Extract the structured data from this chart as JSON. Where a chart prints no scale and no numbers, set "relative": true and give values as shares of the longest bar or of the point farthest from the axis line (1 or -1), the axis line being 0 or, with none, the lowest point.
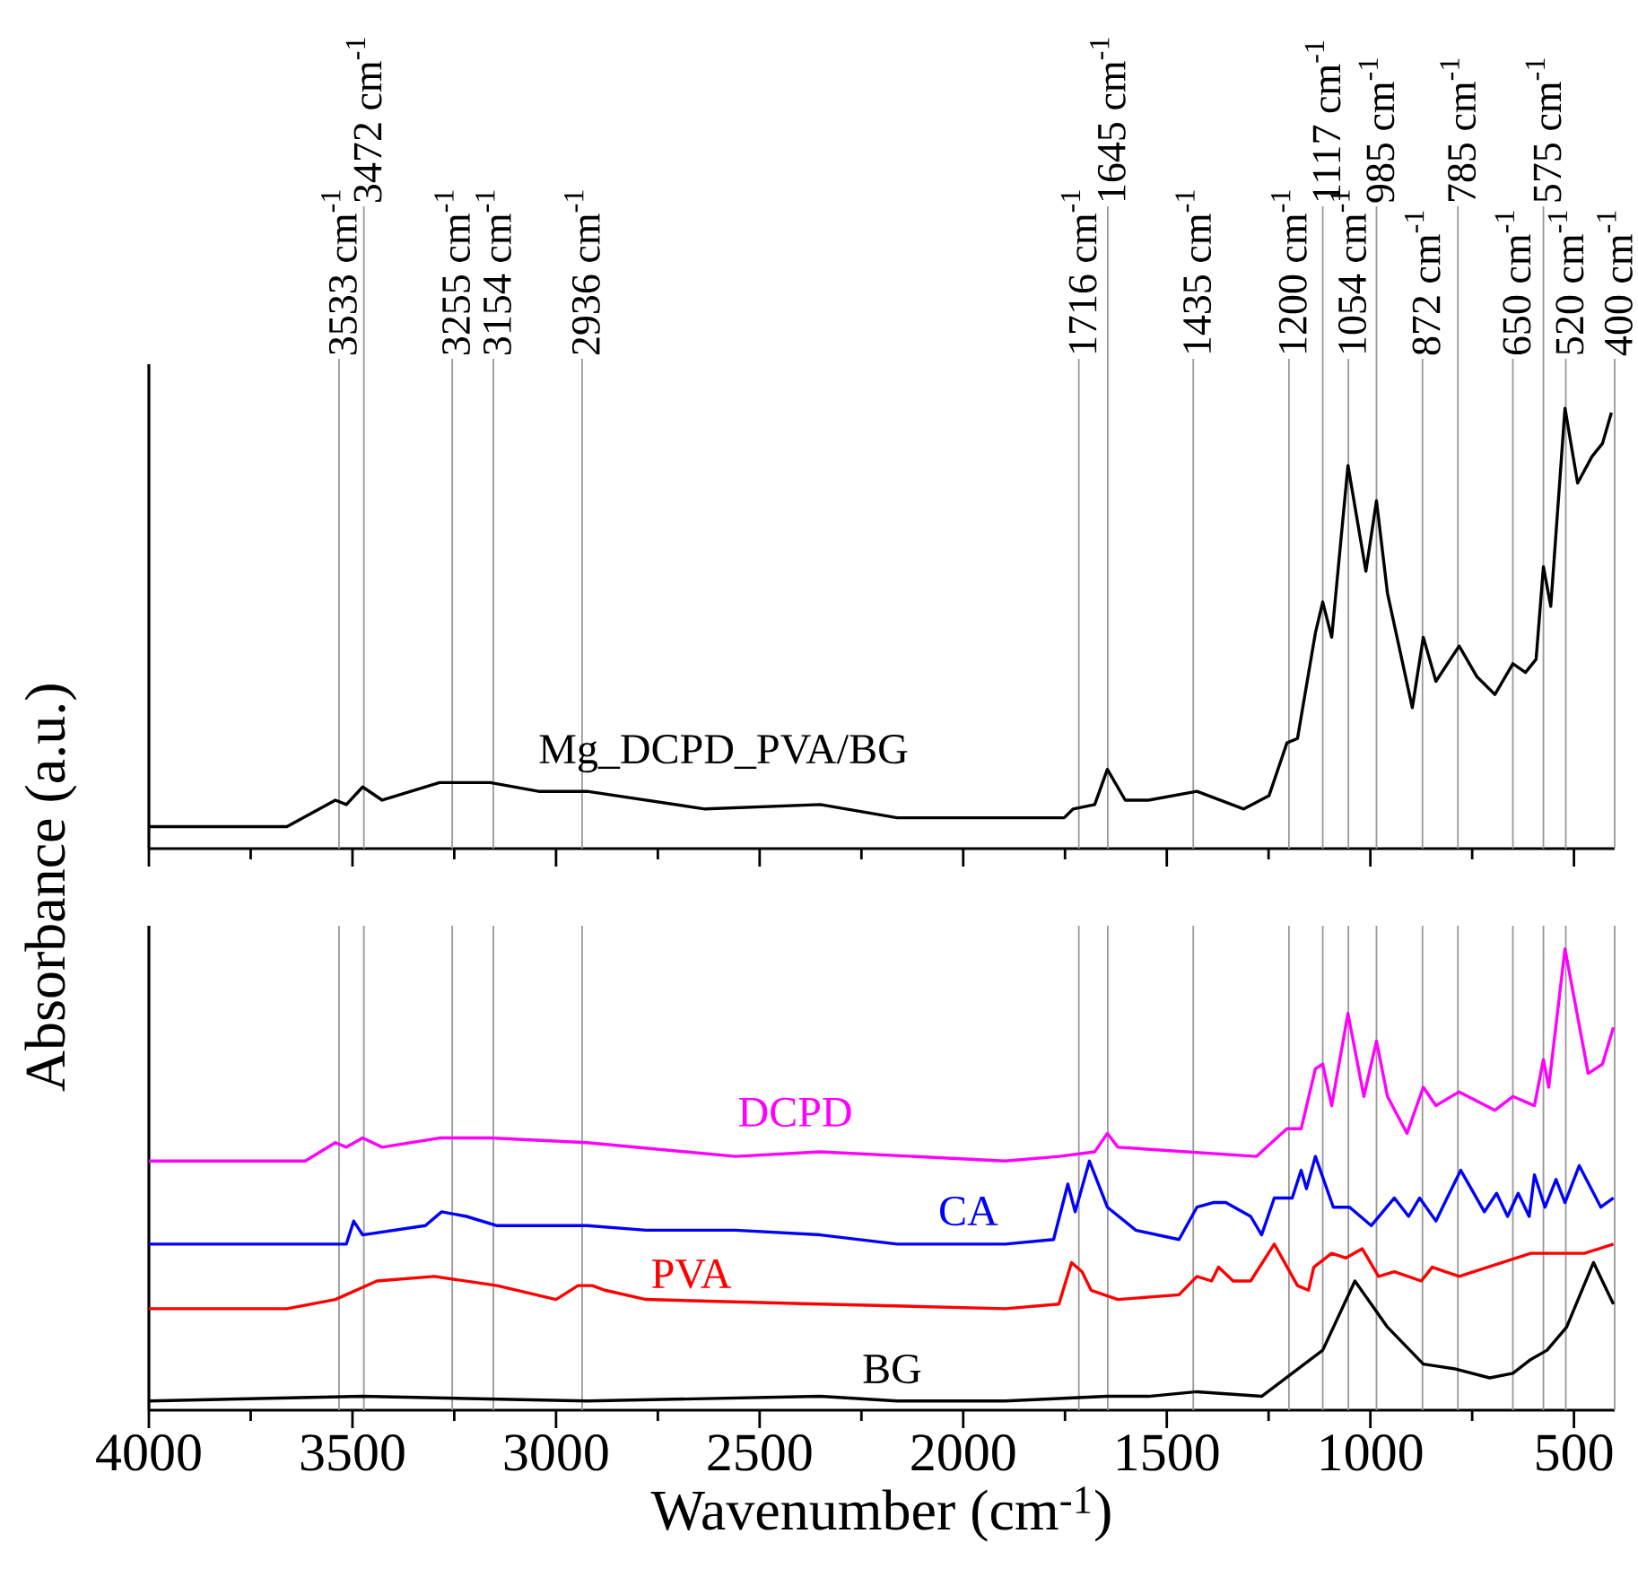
{
  "chart_data": [
    {
      "type": "line",
      "relative": true,
      "xlim": [
        4000,
        400
      ],
      "xticks": [
        4000,
        3500,
        3000,
        2500,
        2000,
        1500,
        1000,
        500
      ],
      "tick_labels": false,
      "series": [
        {
          "name": "Mg_DCPD_PVA/BG",
          "color": "#000000",
          "x": [
            4000,
            3661,
            3542,
            3515,
            3475,
            3427,
            3286,
            3162,
            3043,
            2924,
            2634,
            2351,
            2162,
            1897,
            1752,
            1730,
            1677,
            1646,
            1602,
            1545,
            1426,
            1311,
            1249,
            1205,
            1179,
            1135,
            1117,
            1095,
            1055,
            1011,
            985,
            958,
            897,
            870,
            839,
            782,
            738,
            694,
            650,
            619,
            593,
            575,
            557,
            522,
            491,
            456,
            430,
            408
          ],
          "values": [
            0.05,
            0.05,
            0.11,
            0.1,
            0.14,
            0.11,
            0.15,
            0.15,
            0.13,
            0.13,
            0.09,
            0.1,
            0.07,
            0.07,
            0.07,
            0.09,
            0.1,
            0.18,
            0.11,
            0.11,
            0.13,
            0.09,
            0.12,
            0.24,
            0.25,
            0.49,
            0.56,
            0.48,
            0.87,
            0.63,
            0.79,
            0.58,
            0.32,
            0.48,
            0.38,
            0.46,
            0.39,
            0.35,
            0.42,
            0.4,
            0.43,
            0.64,
            0.55,
            1.0,
            0.83,
            0.89,
            0.92,
            0.99
          ]
        }
      ],
      "ref_lines": [
        {
          "axis": "x",
          "value": 3533,
          "label": "3533 cm$^{-1}$",
          "color": "#999999"
        },
        {
          "axis": "x",
          "value": 3472,
          "label": "3472 cm$^{-1}$",
          "color": "#999999"
        },
        {
          "axis": "x",
          "value": 3255,
          "label": "3255 cm$^{-1}$",
          "color": "#999999"
        },
        {
          "axis": "x",
          "value": 3154,
          "label": "3154 cm$^{-1}$",
          "color": "#999999"
        },
        {
          "axis": "x",
          "value": 2936,
          "label": "2936 cm$^{-1}$",
          "color": "#999999"
        },
        {
          "axis": "x",
          "value": 1716,
          "label": "1716 cm$^{-1}$",
          "color": "#999999"
        },
        {
          "axis": "x",
          "value": 1645,
          "label": "1645 cm$^{-1}$",
          "color": "#999999"
        },
        {
          "axis": "x",
          "value": 1435,
          "label": "1435 cm$^{-1}$",
          "color": "#999999"
        },
        {
          "axis": "x",
          "value": 1200,
          "label": "1200 cm$^{-1}$",
          "color": "#999999"
        },
        {
          "axis": "x",
          "value": 1117,
          "label": "1117 cm$^{-1}$",
          "color": "#999999"
        },
        {
          "axis": "x",
          "value": 1054,
          "label": "1054 cm$^{-1}$",
          "color": "#999999"
        },
        {
          "axis": "x",
          "value": 985,
          "label": "985 cm$^{-1}$",
          "color": "#999999"
        },
        {
          "axis": "x",
          "value": 872,
          "label": "872 cm$^{-1}$",
          "color": "#999999"
        },
        {
          "axis": "x",
          "value": 785,
          "label": "785 cm$^{-1}$",
          "color": "#999999"
        },
        {
          "axis": "x",
          "value": 650,
          "label": "650 cm$^{-1}$",
          "color": "#999999"
        },
        {
          "axis": "x",
          "value": 575,
          "label": "575 cm$^{-1}$",
          "color": "#999999"
        },
        {
          "axis": "x",
          "value": 520,
          "label": "520 cm$^{-1}$",
          "color": "#999999"
        },
        {
          "axis": "x",
          "value": 400,
          "label": "400 cm$^{-1}$",
          "color": "#999999"
        }
      ]
    },
    {
      "type": "line",
      "relative": true,
      "xlabel": "Wavenumber (cm$^{-1}$)",
      "ylabel": "Absorbance (a.u.)",
      "xlim": [
        4000,
        400
      ],
      "xticks": [
        4000,
        3500,
        3000,
        2500,
        2000,
        1500,
        1000,
        500
      ],
      "tick_labels": "x",
      "series": [
        {
          "name": "DCPD",
          "color": "#ff00ff",
          "x": [
            4000,
            3616,
            3542,
            3515,
            3475,
            3427,
            3286,
            3162,
            2924,
            2559,
            2351,
            1897,
            1765,
            1677,
            1646,
            1620,
            1280,
            1205,
            1170,
            1135,
            1117,
            1095,
            1055,
            1016,
            985,
            958,
            910,
            870,
            839,
            782,
            694,
            650,
            597,
            575,
            562,
            522,
            465,
            430,
            403
          ],
          "values": [
            0.54,
            0.54,
            0.58,
            0.57,
            0.59,
            0.57,
            0.59,
            0.59,
            0.58,
            0.55,
            0.56,
            0.54,
            0.55,
            0.56,
            0.6,
            0.57,
            0.55,
            0.61,
            0.61,
            0.74,
            0.75,
            0.66,
            0.86,
            0.68,
            0.8,
            0.68,
            0.6,
            0.7,
            0.66,
            0.69,
            0.65,
            0.68,
            0.66,
            0.76,
            0.7,
            1.0,
            0.73,
            0.75,
            0.83
          ]
        },
        {
          "name": "CA",
          "color": "#0000ff",
          "x": [
            4000,
            3515,
            3497,
            3475,
            3321,
            3281,
            3220,
            3145,
            2924,
            2779,
            2559,
            2351,
            2162,
            1897,
            1778,
            1743,
            1725,
            1690,
            1646,
            1576,
            1470,
            1426,
            1386,
            1355,
            1294,
            1267,
            1236,
            1192,
            1170,
            1157,
            1135,
            1091,
            1051,
            998,
            941,
            906,
            879,
            839,
            817,
            778,
            720,
            690,
            663,
            637,
            610,
            597,
            571,
            544,
            522,
            487,
            434,
            403
          ],
          "values": [
            0.36,
            0.36,
            0.41,
            0.38,
            0.4,
            0.43,
            0.42,
            0.4,
            0.4,
            0.39,
            0.39,
            0.38,
            0.36,
            0.36,
            0.37,
            0.49,
            0.43,
            0.54,
            0.44,
            0.39,
            0.37,
            0.44,
            0.45,
            0.45,
            0.42,
            0.38,
            0.46,
            0.46,
            0.52,
            0.48,
            0.55,
            0.44,
            0.44,
            0.4,
            0.46,
            0.42,
            0.46,
            0.41,
            0.45,
            0.52,
            0.43,
            0.47,
            0.42,
            0.47,
            0.42,
            0.51,
            0.44,
            0.5,
            0.45,
            0.53,
            0.44,
            0.46
          ]
        },
        {
          "name": "PVA",
          "color": "#ff0000",
          "x": [
            4000,
            3661,
            3542,
            3440,
            3299,
            3145,
            3000,
            2946,
            2911,
            2880,
            2779,
            2351,
            1897,
            1765,
            1734,
            1708,
            1686,
            1620,
            1470,
            1426,
            1390,
            1373,
            1337,
            1294,
            1236,
            1179,
            1152,
            1139,
            1095,
            1060,
            1020,
            980,
            941,
            875,
            848,
            782,
            606,
            474,
            403
          ],
          "values": [
            0.22,
            0.22,
            0.24,
            0.28,
            0.29,
            0.27,
            0.24,
            0.27,
            0.27,
            0.26,
            0.24,
            0.23,
            0.22,
            0.23,
            0.32,
            0.3,
            0.26,
            0.24,
            0.25,
            0.29,
            0.28,
            0.31,
            0.28,
            0.28,
            0.36,
            0.27,
            0.26,
            0.31,
            0.34,
            0.33,
            0.35,
            0.29,
            0.3,
            0.28,
            0.31,
            0.29,
            0.34,
            0.34,
            0.36
          ]
        },
        {
          "name": "BG",
          "color": "#000000",
          "x": [
            4000,
            3475,
            2924,
            2351,
            2162,
            1897,
            1646,
            1545,
            1426,
            1267,
            1192,
            1117,
            1038,
            958,
            870,
            795,
            707,
            650,
            606,
            566,
            518,
            452,
            403
          ],
          "values": [
            0.02,
            0.03,
            0.02,
            0.03,
            0.02,
            0.02,
            0.03,
            0.03,
            0.04,
            0.03,
            0.08,
            0.13,
            0.28,
            0.18,
            0.1,
            0.09,
            0.07,
            0.08,
            0.11,
            0.13,
            0.18,
            0.32,
            0.23
          ]
        }
      ],
      "ref_lines": [
        {
          "axis": "x",
          "value": 3533,
          "color": "#999999"
        },
        {
          "axis": "x",
          "value": 3472,
          "color": "#999999"
        },
        {
          "axis": "x",
          "value": 3255,
          "color": "#999999"
        },
        {
          "axis": "x",
          "value": 3154,
          "color": "#999999"
        },
        {
          "axis": "x",
          "value": 2936,
          "color": "#999999"
        },
        {
          "axis": "x",
          "value": 1716,
          "color": "#999999"
        },
        {
          "axis": "x",
          "value": 1645,
          "color": "#999999"
        },
        {
          "axis": "x",
          "value": 1435,
          "color": "#999999"
        },
        {
          "axis": "x",
          "value": 1200,
          "color": "#999999"
        },
        {
          "axis": "x",
          "value": 1117,
          "color": "#999999"
        },
        {
          "axis": "x",
          "value": 1054,
          "color": "#999999"
        },
        {
          "axis": "x",
          "value": 985,
          "color": "#999999"
        },
        {
          "axis": "x",
          "value": 872,
          "color": "#999999"
        },
        {
          "axis": "x",
          "value": 785,
          "color": "#999999"
        },
        {
          "axis": "x",
          "value": 650,
          "color": "#999999"
        },
        {
          "axis": "x",
          "value": 575,
          "color": "#999999"
        },
        {
          "axis": "x",
          "value": 520,
          "color": "#999999"
        },
        {
          "axis": "x",
          "value": 400,
          "color": "#999999"
        }
      ]
    }
  ]
}
